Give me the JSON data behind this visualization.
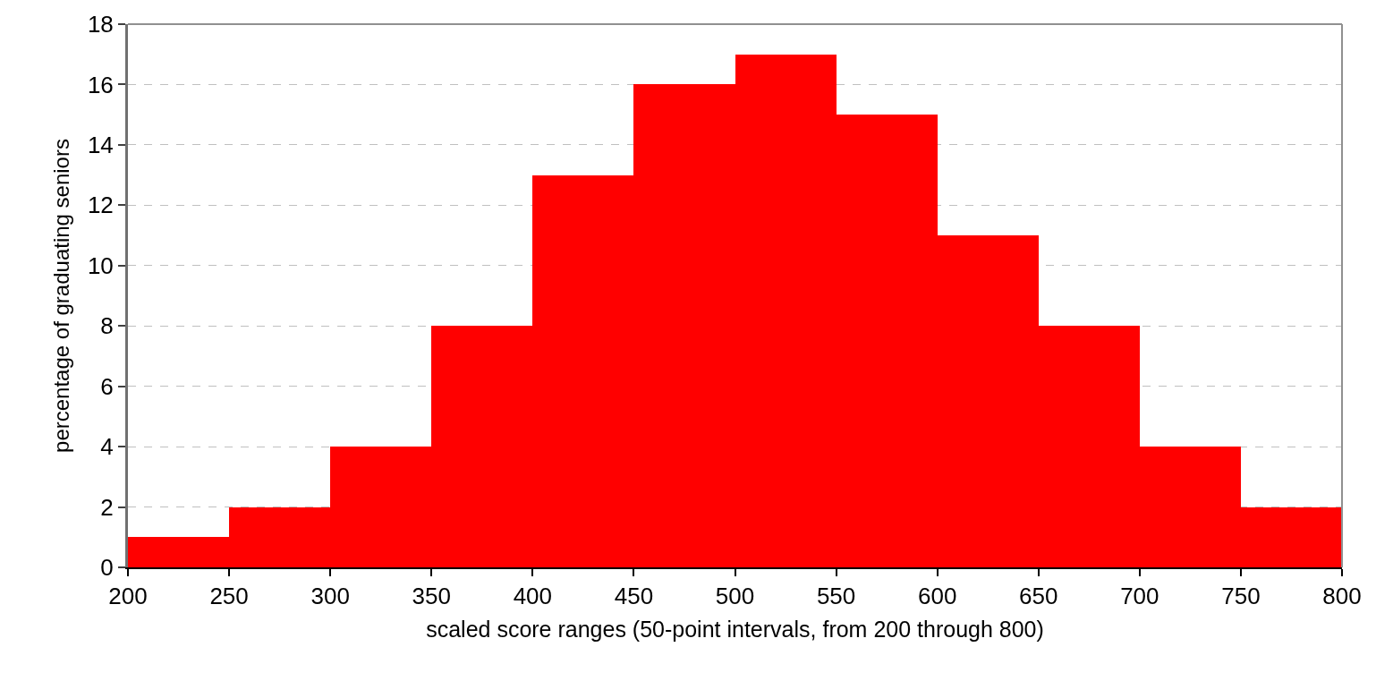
{
  "chart_data": {
    "type": "histogram",
    "xlabel": "scaled score ranges (50-point intervals, from 200 through 800)",
    "ylabel": "percentage of graduating seniors",
    "bins": [
      200,
      250,
      300,
      350,
      400,
      450,
      500,
      550,
      600,
      650,
      700,
      750,
      800
    ],
    "values": [
      1,
      2,
      4,
      8,
      13,
      16,
      17,
      15,
      11,
      8,
      4,
      2
    ],
    "color": "#ff0000",
    "xlim": [
      200,
      800
    ],
    "xticks": [
      200,
      250,
      300,
      350,
      400,
      450,
      500,
      550,
      600,
      650,
      700,
      750,
      800
    ],
    "ylim": [
      0,
      18
    ],
    "yticks": [
      0,
      2,
      4,
      6,
      8,
      10,
      12,
      14,
      16,
      18
    ],
    "grid": "y"
  }
}
